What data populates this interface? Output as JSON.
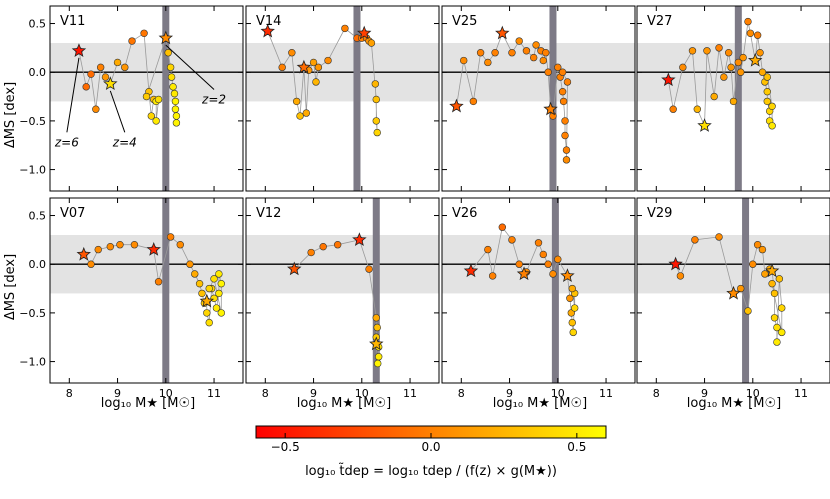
{
  "chart_data": {
    "type": "scatter",
    "title": "",
    "xlim": [
      7.6,
      11.6
    ],
    "ylim": [
      -1.22,
      0.68
    ],
    "x_ticks": [
      8,
      9,
      10,
      11
    ],
    "x_tick_labels": [
      "8",
      "9",
      "10",
      "11"
    ],
    "y_ticks": [
      0.5,
      0.0,
      -0.5,
      -1.0
    ],
    "y_tick_labels": [
      "0.5",
      "0.0",
      "−0.5",
      "−1.0"
    ],
    "xlabel": "log₁₀ M★ [M☉]",
    "ylabel": "ΔMS [dex]",
    "shaded_band": [
      -0.3,
      0.3
    ],
    "annotations": [
      {
        "text": "z=6",
        "x": 8.2,
        "y": 0.22,
        "label_x": 7.95,
        "label_y": -0.72
      },
      {
        "text": "z=4",
        "x": 8.85,
        "y": -0.12,
        "label_x": 9.15,
        "label_y": -0.72
      },
      {
        "text": "z=2",
        "x": 10.0,
        "y": 0.35,
        "label_x": 11.0,
        "label_y": -0.28
      }
    ],
    "colorbar": {
      "range": [
        -0.6,
        0.6
      ],
      "ticks": [
        -0.5,
        0.0,
        0.5
      ],
      "tick_labels": [
        "−0.5",
        "0.0",
        "0.5"
      ],
      "label": "log₁₀ t̃dep = log₁₀ tdep / (f(z) × g(M★))",
      "colors": [
        "#ff0000",
        "#ff8000",
        "#ffff00"
      ]
    },
    "panels": [
      {
        "name": "V11",
        "vline": 10.0,
        "stars": [
          [
            8.2,
            0.22,
            -0.5
          ],
          [
            8.85,
            -0.12,
            0.45
          ],
          [
            10.0,
            0.35,
            0.05
          ]
        ],
        "points": [
          [
            8.2,
            0.22,
            -0.5
          ],
          [
            8.35,
            -0.15,
            -0.1
          ],
          [
            8.45,
            -0.02,
            -0.1
          ],
          [
            8.55,
            -0.38,
            0.05
          ],
          [
            8.65,
            0.05,
            0.0
          ],
          [
            8.75,
            -0.05,
            0.1
          ],
          [
            8.85,
            -0.12,
            0.45
          ],
          [
            9.0,
            0.1,
            0.2
          ],
          [
            9.15,
            0.05,
            0.1
          ],
          [
            9.3,
            0.32,
            -0.05
          ],
          [
            9.55,
            0.4,
            -0.05
          ],
          [
            9.65,
            -0.2,
            0.3
          ],
          [
            9.7,
            -0.45,
            0.4
          ],
          [
            9.75,
            -0.28,
            0.3
          ],
          [
            9.8,
            -0.3,
            0.5
          ],
          [
            9.8,
            -0.5,
            0.5
          ],
          [
            9.85,
            -0.28,
            0.45
          ],
          [
            9.6,
            -0.25,
            0.35
          ],
          [
            10.0,
            0.35,
            0.05
          ],
          [
            10.05,
            0.2,
            0.3
          ],
          [
            10.1,
            0.05,
            0.4
          ],
          [
            10.12,
            -0.05,
            0.45
          ],
          [
            10.15,
            -0.15,
            0.5
          ],
          [
            10.18,
            -0.22,
            0.5
          ],
          [
            10.2,
            -0.3,
            0.55
          ],
          [
            10.2,
            -0.38,
            0.55
          ],
          [
            10.22,
            -0.45,
            0.55
          ],
          [
            10.22,
            -0.52,
            0.55
          ]
        ]
      },
      {
        "name": "V14",
        "vline": 9.9,
        "stars": [
          [
            8.05,
            0.42,
            -0.4
          ],
          [
            8.8,
            0.05,
            -0.1
          ],
          [
            10.05,
            0.4,
            -0.3
          ]
        ],
        "points": [
          [
            8.05,
            0.42,
            -0.4
          ],
          [
            8.35,
            0.05,
            0.0
          ],
          [
            8.55,
            0.2,
            0.05
          ],
          [
            8.65,
            -0.3,
            0.2
          ],
          [
            8.72,
            -0.45,
            0.3
          ],
          [
            8.8,
            0.05,
            -0.1
          ],
          [
            8.85,
            -0.42,
            0.2
          ],
          [
            8.9,
            0.02,
            0.1
          ],
          [
            9.0,
            0.1,
            0.15
          ],
          [
            9.05,
            -0.1,
            0.25
          ],
          [
            9.1,
            0.05,
            0.1
          ],
          [
            9.3,
            0.12,
            0.05
          ],
          [
            9.65,
            0.45,
            0.0
          ],
          [
            9.9,
            0.35,
            -0.1
          ],
          [
            10.0,
            0.35,
            0.0
          ],
          [
            10.05,
            0.4,
            -0.3
          ],
          [
            10.1,
            0.35,
            0.0
          ],
          [
            10.15,
            0.32,
            0.1
          ],
          [
            10.2,
            0.3,
            0.15
          ],
          [
            10.3,
            -0.28,
            0.3
          ],
          [
            10.3,
            -0.5,
            0.35
          ],
          [
            10.32,
            -0.62,
            0.4
          ],
          [
            10.28,
            -0.12,
            0.25
          ]
        ]
      },
      {
        "name": "V25",
        "vline": 9.9,
        "stars": [
          [
            7.9,
            -0.35,
            -0.2
          ],
          [
            8.85,
            0.4,
            -0.2
          ],
          [
            9.85,
            -0.38,
            0.0
          ]
        ],
        "points": [
          [
            7.9,
            -0.35,
            -0.2
          ],
          [
            8.05,
            0.12,
            0.05
          ],
          [
            8.25,
            -0.3,
            0.0
          ],
          [
            8.4,
            0.2,
            0.0
          ],
          [
            8.55,
            0.1,
            0.05
          ],
          [
            8.7,
            0.2,
            0.0
          ],
          [
            8.85,
            0.4,
            -0.2
          ],
          [
            9.05,
            0.2,
            0.0
          ],
          [
            9.2,
            0.32,
            0.05
          ],
          [
            9.35,
            0.22,
            0.0
          ],
          [
            9.5,
            0.15,
            0.0
          ],
          [
            9.55,
            0.28,
            0.05
          ],
          [
            9.65,
            0.22,
            0.0
          ],
          [
            9.7,
            0.12,
            0.05
          ],
          [
            9.75,
            0.2,
            0.0
          ],
          [
            9.8,
            0.0,
            0.0
          ],
          [
            9.85,
            -0.38,
            0.0
          ],
          [
            9.9,
            -0.45,
            0.0
          ],
          [
            10.0,
            0.05,
            0.0
          ],
          [
            10.05,
            -0.05,
            0.0
          ],
          [
            10.1,
            -0.2,
            0.0
          ],
          [
            10.12,
            -0.3,
            0.0
          ],
          [
            10.15,
            -0.5,
            0.0
          ],
          [
            10.15,
            -0.65,
            0.0
          ],
          [
            10.18,
            -0.8,
            0.0
          ],
          [
            10.18,
            -0.9,
            0.05
          ],
          [
            10.2,
            -0.1,
            0.0
          ],
          [
            10.1,
            0.0,
            0.0
          ]
        ]
      },
      {
        "name": "V27",
        "vline": 9.7,
        "stars": [
          [
            8.25,
            -0.08,
            -0.5
          ],
          [
            9.0,
            -0.55,
            0.45
          ],
          [
            10.05,
            0.12,
            0.2
          ]
        ],
        "points": [
          [
            8.25,
            -0.08,
            -0.5
          ],
          [
            8.35,
            -0.38,
            0.0
          ],
          [
            8.55,
            0.05,
            0.05
          ],
          [
            8.75,
            0.22,
            0.1
          ],
          [
            8.85,
            -0.38,
            0.25
          ],
          [
            9.0,
            -0.55,
            0.45
          ],
          [
            9.05,
            0.22,
            0.1
          ],
          [
            9.2,
            -0.25,
            0.2
          ],
          [
            9.3,
            0.25,
            0.0
          ],
          [
            9.4,
            -0.05,
            0.1
          ],
          [
            9.5,
            0.2,
            0.05
          ],
          [
            9.55,
            0.05,
            0.1
          ],
          [
            9.6,
            -0.3,
            0.2
          ],
          [
            9.7,
            0.1,
            0.05
          ],
          [
            9.75,
            0.0,
            0.1
          ],
          [
            9.8,
            0.15,
            0.1
          ],
          [
            9.9,
            0.52,
            0.0
          ],
          [
            9.95,
            0.4,
            0.05
          ],
          [
            10.05,
            0.12,
            0.2
          ],
          [
            10.1,
            0.38,
            0.0
          ],
          [
            10.15,
            0.2,
            0.1
          ],
          [
            10.2,
            0.0,
            0.2
          ],
          [
            10.25,
            -0.1,
            0.3
          ],
          [
            10.3,
            -0.2,
            0.35
          ],
          [
            10.3,
            -0.3,
            0.35
          ],
          [
            10.35,
            -0.4,
            0.4
          ],
          [
            10.35,
            -0.5,
            0.45
          ],
          [
            10.4,
            -0.55,
            0.5
          ],
          [
            10.4,
            -0.35,
            0.4
          ],
          [
            10.3,
            -0.05,
            0.3
          ]
        ]
      },
      {
        "name": "V07",
        "vline": 10.0,
        "stars": [
          [
            8.3,
            0.1,
            -0.2
          ],
          [
            9.75,
            0.15,
            -0.4
          ],
          [
            10.85,
            -0.38,
            0.2
          ]
        ],
        "points": [
          [
            8.3,
            0.1,
            -0.2
          ],
          [
            8.45,
            0.0,
            0.05
          ],
          [
            8.6,
            0.15,
            0.05
          ],
          [
            8.85,
            0.18,
            0.05
          ],
          [
            9.05,
            0.2,
            0.05
          ],
          [
            9.35,
            0.2,
            0.05
          ],
          [
            9.75,
            0.15,
            -0.4
          ],
          [
            9.85,
            -0.18,
            0.0
          ],
          [
            10.1,
            0.28,
            0.0
          ],
          [
            10.3,
            0.2,
            0.05
          ],
          [
            10.5,
            0.0,
            0.1
          ],
          [
            10.6,
            -0.1,
            0.2
          ],
          [
            10.7,
            -0.2,
            0.3
          ],
          [
            10.75,
            -0.3,
            0.3
          ],
          [
            10.8,
            -0.4,
            0.35
          ],
          [
            10.85,
            -0.38,
            0.2
          ],
          [
            10.85,
            -0.5,
            0.4
          ],
          [
            10.9,
            -0.6,
            0.45
          ],
          [
            10.95,
            -0.25,
            0.4
          ],
          [
            11.0,
            -0.35,
            0.45
          ],
          [
            11.05,
            -0.45,
            0.5
          ],
          [
            11.1,
            -0.3,
            0.5
          ],
          [
            11.1,
            -0.1,
            0.5
          ],
          [
            11.15,
            -0.2,
            0.55
          ],
          [
            11.15,
            -0.5,
            0.55
          ],
          [
            11.0,
            -0.15,
            0.45
          ],
          [
            10.9,
            -0.25,
            0.4
          ]
        ]
      },
      {
        "name": "V12",
        "vline": 10.3,
        "stars": [
          [
            8.6,
            -0.05,
            -0.2
          ],
          [
            9.95,
            0.25,
            -0.4
          ],
          [
            10.3,
            -0.82,
            0.25
          ]
        ],
        "points": [
          [
            8.6,
            -0.05,
            -0.2
          ],
          [
            8.95,
            0.12,
            0.0
          ],
          [
            9.2,
            0.18,
            -0.05
          ],
          [
            9.5,
            0.2,
            -0.05
          ],
          [
            9.95,
            0.25,
            -0.4
          ],
          [
            10.15,
            -0.05,
            0.0
          ],
          [
            10.3,
            -0.55,
            0.2
          ],
          [
            10.32,
            -0.65,
            0.3
          ],
          [
            10.3,
            -0.75,
            0.35
          ],
          [
            10.35,
            -0.85,
            0.45
          ],
          [
            10.35,
            -0.95,
            0.5
          ],
          [
            10.33,
            -1.02,
            0.55
          ],
          [
            10.3,
            -0.82,
            0.25
          ]
        ]
      },
      {
        "name": "V26",
        "vline": 9.95,
        "stars": [
          [
            8.2,
            -0.07,
            -0.4
          ],
          [
            9.3,
            -0.1,
            0.0
          ],
          [
            10.2,
            -0.12,
            0.05
          ]
        ],
        "points": [
          [
            8.2,
            -0.07,
            -0.4
          ],
          [
            8.55,
            0.15,
            0.0
          ],
          [
            8.65,
            -0.12,
            0.0
          ],
          [
            8.85,
            0.38,
            -0.1
          ],
          [
            9.05,
            0.25,
            0.0
          ],
          [
            9.2,
            0.0,
            0.0
          ],
          [
            9.3,
            -0.1,
            0.0
          ],
          [
            9.35,
            -0.08,
            0.05
          ],
          [
            9.6,
            0.22,
            0.0
          ],
          [
            9.7,
            0.1,
            0.0
          ],
          [
            9.8,
            0.0,
            0.0
          ],
          [
            9.9,
            -0.1,
            0.05
          ],
          [
            10.0,
            0.05,
            0.05
          ],
          [
            10.2,
            -0.12,
            0.05
          ],
          [
            10.25,
            -0.35,
            0.1
          ],
          [
            10.28,
            -0.5,
            0.2
          ],
          [
            10.3,
            -0.6,
            0.3
          ],
          [
            10.32,
            -0.7,
            0.4
          ],
          [
            10.35,
            -0.3,
            0.3
          ],
          [
            10.35,
            -0.45,
            0.4
          ],
          [
            10.3,
            -0.25,
            0.2
          ]
        ]
      },
      {
        "name": "V29",
        "vline": 9.85,
        "stars": [
          [
            8.4,
            0.0,
            -0.5
          ],
          [
            9.6,
            -0.3,
            0.05
          ],
          [
            10.4,
            -0.07,
            0.2
          ]
        ],
        "points": [
          [
            8.4,
            0.0,
            -0.5
          ],
          [
            8.5,
            -0.12,
            0.05
          ],
          [
            8.8,
            0.25,
            0.0
          ],
          [
            9.3,
            0.28,
            0.05
          ],
          [
            9.6,
            -0.3,
            0.05
          ],
          [
            9.75,
            -0.25,
            0.1
          ],
          [
            9.9,
            -0.48,
            0.3
          ],
          [
            10.0,
            0.0,
            0.05
          ],
          [
            10.1,
            0.2,
            0.05
          ],
          [
            10.2,
            0.15,
            0.1
          ],
          [
            10.25,
            -0.1,
            0.15
          ],
          [
            10.35,
            -0.05,
            0.2
          ],
          [
            10.4,
            -0.07,
            0.2
          ],
          [
            10.45,
            -0.3,
            0.3
          ],
          [
            10.45,
            -0.55,
            0.4
          ],
          [
            10.5,
            -0.65,
            0.45
          ],
          [
            10.5,
            -0.8,
            0.5
          ],
          [
            10.55,
            -0.15,
            0.3
          ],
          [
            10.6,
            -0.45,
            0.4
          ],
          [
            10.6,
            -0.7,
            0.5
          ],
          [
            10.4,
            -0.2,
            0.25
          ]
        ]
      }
    ]
  }
}
